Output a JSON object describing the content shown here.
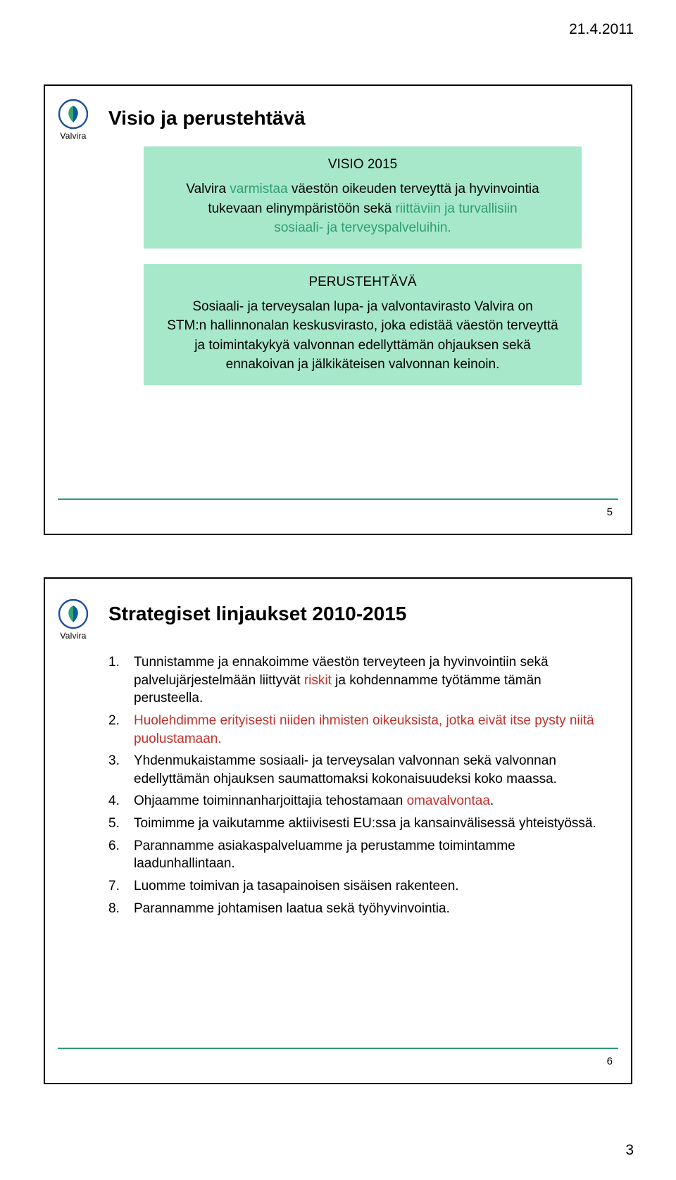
{
  "page": {
    "date": "21.4.2011",
    "number": "3"
  },
  "brand": {
    "name": "Valvira",
    "logo_outer": "#1f4fa0",
    "logo_leaf_left": "#34a26e",
    "logo_leaf_right": "#0b5aa6"
  },
  "colors": {
    "accent_green": "#2e9e6f",
    "accent_red": "#c0302b",
    "box_bg": "#a7e8cb",
    "text": "#000000",
    "rule": "#2e9e6f"
  },
  "slide1": {
    "title": "Visio ja perustehtävä",
    "slide_number": "5",
    "box1": {
      "heading": "VISIO 2015",
      "line1_pre": "Valvira ",
      "line1_hl": "varmistaa",
      "line1_post": " väestön oikeuden terveyttä ja hyvinvointia",
      "line2_pre": "tukevaan elinympäristöön sekä ",
      "line2_hl": "riittäviin ja turvallisiin",
      "line3_hl": "sosiaali- ja terveyspalveluihin."
    },
    "box2": {
      "heading": "PERUSTEHTÄVÄ",
      "line1": "Sosiaali- ja terveysalan lupa- ja valvontavirasto Valvira on",
      "line2": "STM:n hallinnonalan keskusvirasto, joka edistää väestön terveyttä",
      "line3": "ja toimintakykyä valvonnan edellyttämän ohjauksen sekä",
      "line4": "ennakoivan ja jälkikäteisen valvonnan keinoin."
    }
  },
  "slide2": {
    "title": "Strategiset linjaukset 2010-2015",
    "slide_number": "6",
    "items": [
      {
        "n": "1.",
        "pre": "Tunnistamme ja ennakoimme  väestön terveyteen ja hyvinvointiin sekä palvelujärjestelmään liittyvät ",
        "hl": "riskit",
        "post": " ja kohdennamme työtämme tämän perusteella."
      },
      {
        "n": "2.",
        "pre": "Huolehdimme erityisesti niiden ihmisten oikeuksista, jotka eivät itse pysty niitä puolustamaan.",
        "all_red": true
      },
      {
        "n": "3.",
        "pre": "Yhdenmukaistamme sosiaali- ja terveysalan valvonnan sekä valvonnan edellyttämän ohjauksen saumattomaksi kokonaisuudeksi koko maassa."
      },
      {
        "n": "4.",
        "pre": "Ohjaamme toiminnanharjoittajia tehostamaan ",
        "hl": "omavalvontaa",
        "post": "."
      },
      {
        "n": "5.",
        "pre": "Toimimme ja vaikutamme aktiivisesti EU:ssa ja kansainvälisessä yhteistyössä."
      },
      {
        "n": "6.",
        "pre": "Parannamme asiakaspalveluamme ja perustamme toimintamme laadunhallintaan."
      },
      {
        "n": "7.",
        "pre": "Luomme toimivan ja tasapainoisen sisäisen rakenteen."
      },
      {
        "n": "8.",
        "pre": "Parannamme johtamisen laatua sekä työhyvinvointia."
      }
    ]
  }
}
